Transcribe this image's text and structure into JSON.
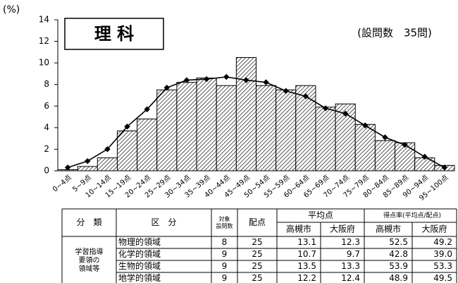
{
  "chart_data": {
    "type": "bar",
    "title": "理 科",
    "subtitle": "(設問数　35問)",
    "ylabel": "(%)",
    "categories": [
      "0~4点",
      "5~9点",
      "10~14点",
      "15~19点",
      "20~24点",
      "25~29点",
      "30~34点",
      "35~39点",
      "40~44点",
      "45~49点",
      "50~54点",
      "55~59点",
      "60~64点",
      "65~69点",
      "70~74点",
      "75~79点",
      "80~84点",
      "85~89点",
      "90~94点",
      "95~100点"
    ],
    "series": [
      {
        "type": "bar",
        "color": "#000000",
        "values": [
          0.1,
          0.4,
          1.2,
          3.7,
          4.8,
          7.5,
          8.2,
          8.6,
          7.9,
          10.5,
          7.9,
          7.5,
          7.9,
          5.9,
          6.2,
          4.3,
          2.8,
          2.6,
          1.2,
          0.5
        ]
      },
      {
        "type": "line",
        "color": "#000000",
        "values": [
          0.3,
          0.9,
          2.0,
          4.1,
          5.7,
          7.7,
          8.4,
          8.5,
          8.7,
          8.4,
          8.2,
          7.4,
          6.9,
          5.8,
          5.3,
          4.2,
          3.1,
          2.4,
          1.3,
          0.3
        ]
      }
    ],
    "ylim": [
      0,
      14
    ],
    "yticks": [
      0,
      2,
      4,
      6,
      8,
      10,
      12,
      14
    ],
    "grid": false
  },
  "table": {
    "header": {
      "category": "分　類",
      "section": "区　分",
      "items": [
        "対象",
        "設問数"
      ],
      "points": "配点",
      "average": "平均点",
      "rate": "得点率(平均点/配点)",
      "sub": [
        "高槻市",
        "大阪府",
        "高槻市",
        "大阪府"
      ]
    },
    "group": [
      "学習指導",
      "要領の",
      "領域等"
    ],
    "rows": [
      [
        "物理的領域",
        "8",
        "25",
        "13.1",
        "12.3",
        "52.5",
        "49.2"
      ],
      [
        "化学的領域",
        "9",
        "25",
        "10.7",
        "9.7",
        "42.8",
        "39.0"
      ],
      [
        "生物的領域",
        "9",
        "25",
        "13.5",
        "13.3",
        "53.9",
        "53.3"
      ],
      [
        "地学的領域",
        "9",
        "25",
        "12.2",
        "12.4",
        "48.9",
        "49.5"
      ]
    ]
  }
}
